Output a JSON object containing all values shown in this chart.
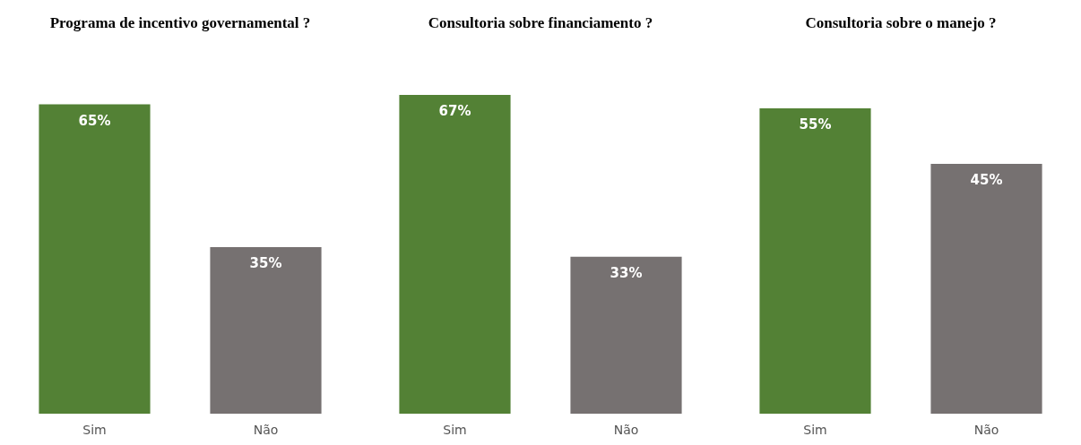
{
  "chart_data": [
    {
      "type": "bar",
      "title": "Programa de incentivo governamental ?",
      "categories": [
        "Sim",
        "Não"
      ],
      "values": [
        65,
        35
      ],
      "colors": [
        "#538135",
        "#767171"
      ],
      "value_labels": [
        "65%",
        "35%"
      ]
    },
    {
      "type": "bar",
      "title": "Consultoria sobre financiamento ?",
      "categories": [
        "Sim",
        "Não"
      ],
      "values": [
        67,
        33
      ],
      "colors": [
        "#538135",
        "#767171"
      ],
      "value_labels": [
        "67%",
        "33%"
      ]
    },
    {
      "type": "bar",
      "title": "Consultoria sobre o manejo ?",
      "categories": [
        "Sim",
        "Não"
      ],
      "values": [
        55,
        45
      ],
      "colors": [
        "#538135",
        "#767171"
      ],
      "value_labels": [
        "55%",
        "45%"
      ]
    }
  ]
}
